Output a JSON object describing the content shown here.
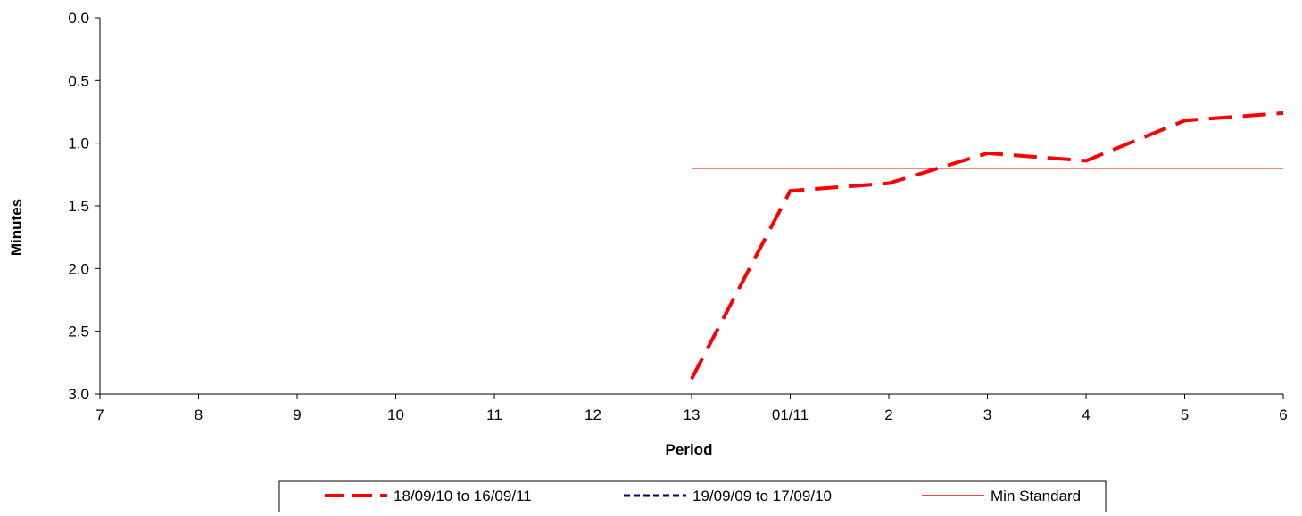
{
  "chart_data": {
    "type": "line",
    "xlabel": "Period",
    "ylabel": "Minutes",
    "categories": [
      "7",
      "8",
      "9",
      "10",
      "11",
      "12",
      "13",
      "01/11",
      "2",
      "3",
      "4",
      "5",
      "6"
    ],
    "y_axis": {
      "ylim": [
        0,
        3.0
      ],
      "ticks": [
        "0.0",
        "0.5",
        "1.0",
        "1.5",
        "2.0",
        "2.5",
        "3.0"
      ],
      "tick_values": [
        0,
        0.5,
        1.0,
        1.5,
        2.0,
        2.5,
        3.0
      ],
      "reversed": true
    },
    "grid": false,
    "legend_position": "bottom",
    "series": [
      {
        "name": "18/09/10 to 16/09/11",
        "color": "#ff0000",
        "style": "dashed",
        "values": [
          null,
          null,
          null,
          null,
          null,
          null,
          2.88,
          1.38,
          1.32,
          1.08,
          1.14,
          0.82,
          0.76
        ]
      },
      {
        "name": "19/09/09 to 17/09/10",
        "color": "#000080",
        "style": "dotted",
        "values": [
          null,
          null,
          null,
          null,
          null,
          null,
          null,
          null,
          null,
          null,
          null,
          null,
          null
        ]
      },
      {
        "name": "Min Standard",
        "color": "#ff0000",
        "style": "solid",
        "values": [
          null,
          null,
          null,
          null,
          null,
          null,
          1.2,
          1.2,
          1.2,
          1.2,
          1.2,
          1.2,
          1.2
        ]
      }
    ]
  }
}
